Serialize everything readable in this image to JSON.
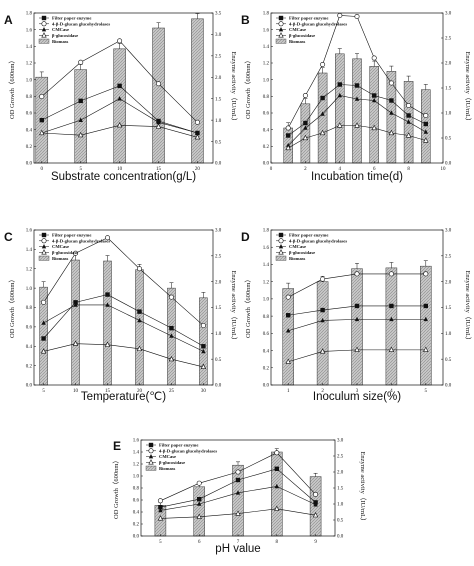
{
  "figure_colors": {
    "bar_fill": "#c8c8c8",
    "hatch": "#8a8a8a",
    "line": "#111111"
  },
  "chart_data": [
    {
      "panel": "A",
      "type": "bar",
      "categories": [
        0,
        5,
        10,
        15,
        20
      ],
      "x_ticks": [
        "0",
        "5",
        "10",
        "15",
        "20"
      ],
      "xlabel": "Substrate concentration(g/L)",
      "ylabel": "OD Growth（600nm）",
      "y2label": "Enzyme activity（IU/mL）",
      "ylim": [
        0,
        1.8
      ],
      "y_ticks": [
        "0.0",
        "0.2",
        "0.4",
        "0.6",
        "0.8",
        "1.0",
        "1.2",
        "1.4",
        "1.6",
        "1.8"
      ],
      "y2lim": [
        0,
        3.5
      ],
      "y2_ticks": [
        "0.0",
        "0.5",
        "1.0",
        "1.5",
        "2.0",
        "2.5",
        "3.0",
        "3.5"
      ],
      "legend_placement": "top-left",
      "series": [
        {
          "name": "Biomass",
          "kind": "bar",
          "values": [
            1.03,
            1.12,
            1.37,
            1.62,
            1.73
          ]
        },
        {
          "name": "Filter paper enzyme",
          "kind": "line",
          "marker": "square-filled",
          "values": [
            1.0,
            1.45,
            1.8,
            0.98,
            0.7
          ]
        },
        {
          "name": "4-β-D-glucan glucohydrolases",
          "kind": "line",
          "marker": "circle-open",
          "values": [
            1.55,
            2.35,
            2.85,
            1.85,
            0.95
          ]
        },
        {
          "name": "CMCase",
          "kind": "line",
          "marker": "triangle-filled",
          "values": [
            0.7,
            1.0,
            1.5,
            0.95,
            0.7
          ]
        },
        {
          "name": "β-glucosidase",
          "kind": "line",
          "marker": "triangle-open",
          "values": [
            0.7,
            0.65,
            0.88,
            0.85,
            0.6
          ]
        }
      ]
    },
    {
      "panel": "B",
      "type": "bar",
      "categories": [
        1,
        2,
        3,
        4,
        5,
        6,
        7,
        8,
        9
      ],
      "x_ticks": [
        "0",
        "2",
        "4",
        "6",
        "8",
        "10"
      ],
      "xlabel": "Incubation time(d)",
      "ylabel": "OD Growth（600nm）",
      "y2label": "Enzyme activity（IU/mL）",
      "ylim": [
        0,
        1.8
      ],
      "y_ticks": [
        "0.0",
        "0.2",
        "0.4",
        "0.6",
        "0.8",
        "1.0",
        "1.2",
        "1.4",
        "1.6",
        "1.8"
      ],
      "y2lim": [
        0,
        3.0
      ],
      "y2_ticks": [
        "0.0",
        "0.5",
        "1.0",
        "1.5",
        "2.0",
        "2.5",
        "3.0"
      ],
      "legend_placement": "top-left",
      "series": [
        {
          "name": "Biomass",
          "kind": "bar",
          "values": [
            0.42,
            0.71,
            1.08,
            1.31,
            1.25,
            1.16,
            1.1,
            0.98,
            0.88
          ]
        },
        {
          "name": "Filter paper enzyme",
          "kind": "line",
          "marker": "square-filled",
          "values": [
            0.55,
            0.8,
            1.3,
            1.57,
            1.55,
            1.35,
            1.25,
            0.95,
            0.78
          ]
        },
        {
          "name": "4-β-D-glucan glucohydrolases",
          "kind": "line",
          "marker": "circle-open",
          "values": [
            0.7,
            1.35,
            1.97,
            2.95,
            2.93,
            2.1,
            1.6,
            1.15,
            0.95
          ]
        },
        {
          "name": "CMCase",
          "kind": "line",
          "marker": "triangle-filled",
          "values": [
            0.35,
            0.7,
            0.98,
            1.35,
            1.28,
            1.25,
            1.0,
            0.82,
            0.62
          ]
        },
        {
          "name": "β-glucosidase",
          "kind": "line",
          "marker": "triangle-open",
          "values": [
            0.3,
            0.5,
            0.6,
            0.75,
            0.75,
            0.7,
            0.6,
            0.55,
            0.45
          ]
        }
      ]
    },
    {
      "panel": "C",
      "type": "bar",
      "categories": [
        5,
        10,
        15,
        20,
        25,
        30
      ],
      "x_ticks": [
        "5",
        "10",
        "15",
        "20",
        "25",
        "30"
      ],
      "xlabel": "Temperature(℃)",
      "ylabel": "OD Growth（600nm）",
      "y2label": "Enzyme activity（IU/mL）",
      "ylim": [
        0,
        1.6
      ],
      "y_ticks": [
        "0.0",
        "0.2",
        "0.4",
        "0.6",
        "0.8",
        "1.0",
        "1.2",
        "1.4",
        "1.6"
      ],
      "y2lim": [
        0,
        3.0
      ],
      "y2_ticks": [
        "0.0",
        "0.5",
        "1.0",
        "1.5",
        "2.0",
        "2.5",
        "3.0"
      ],
      "legend_placement": "top-left",
      "series": [
        {
          "name": "Biomass",
          "kind": "bar",
          "values": [
            1.01,
            1.29,
            1.28,
            1.19,
            1.0,
            0.9
          ]
        },
        {
          "name": "Filter paper enzyme",
          "kind": "line",
          "marker": "square-filled",
          "values": [
            0.9,
            1.6,
            1.75,
            1.42,
            1.1,
            0.75
          ]
        },
        {
          "name": "4-β-D-glucan glucohydrolases",
          "kind": "line",
          "marker": "circle-open",
          "values": [
            1.6,
            2.55,
            2.85,
            2.25,
            1.7,
            1.15
          ]
        },
        {
          "name": "CMCase",
          "kind": "line",
          "marker": "triangle-filled",
          "values": [
            1.2,
            1.55,
            1.55,
            1.25,
            0.95,
            0.65
          ]
        },
        {
          "name": "β-glucosidase",
          "kind": "line",
          "marker": "triangle-open",
          "values": [
            0.65,
            0.8,
            0.78,
            0.7,
            0.5,
            0.35
          ]
        }
      ]
    },
    {
      "panel": "D",
      "type": "bar",
      "categories": [
        1,
        2,
        3,
        4,
        5
      ],
      "x_ticks": [
        "1",
        "2",
        "3",
        "4",
        "5"
      ],
      "xlabel": "Inoculum size(%)",
      "ylabel": "OD Growth（600nm）",
      "y2label": "Enzyme activity（IU/mL）",
      "ylim": [
        0,
        1.8
      ],
      "y_ticks": [
        "0.0",
        "0.2",
        "0.4",
        "0.6",
        "0.8",
        "1.0",
        "1.2",
        "1.4",
        "1.6",
        "1.8"
      ],
      "y2lim": [
        0,
        3.0
      ],
      "y2_ticks": [
        "0.0",
        "0.5",
        "1.0",
        "1.5",
        "2.0",
        "2.5",
        "3.0"
      ],
      "legend_placement": "top-left",
      "series": [
        {
          "name": "Biomass",
          "kind": "bar",
          "values": [
            1.12,
            1.2,
            1.35,
            1.36,
            1.38
          ]
        },
        {
          "name": "Filter paper enzyme",
          "kind": "line",
          "marker": "square-filled",
          "values": [
            1.35,
            1.45,
            1.53,
            1.53,
            1.53
          ]
        },
        {
          "name": "4-β-D-glucan glucohydrolases",
          "kind": "line",
          "marker": "circle-open",
          "values": [
            1.7,
            2.05,
            2.15,
            2.15,
            2.15
          ]
        },
        {
          "name": "CMCase",
          "kind": "line",
          "marker": "triangle-filled",
          "values": [
            1.05,
            1.25,
            1.27,
            1.27,
            1.27
          ]
        },
        {
          "name": "β-glucosidase",
          "kind": "line",
          "marker": "triangle-open",
          "values": [
            0.45,
            0.65,
            0.68,
            0.68,
            0.68
          ]
        }
      ]
    },
    {
      "panel": "E",
      "type": "bar",
      "categories": [
        5,
        6,
        7,
        8,
        9
      ],
      "x_ticks": [
        "5",
        "6",
        "7",
        "8",
        "9"
      ],
      "xlabel": "pH value",
      "ylabel": "OD Growth（600nm）",
      "y2label": "Enzyme activity（IU/mL）",
      "ylim": [
        0,
        1.6
      ],
      "y_ticks": [
        "0.0",
        "0.2",
        "0.4",
        "0.6",
        "0.8",
        "1.0",
        "1.2",
        "1.4",
        "1.6"
      ],
      "y2lim": [
        0,
        3.0
      ],
      "y2_ticks": [
        "0.0",
        "0.5",
        "1.0",
        "1.5",
        "2.0",
        "2.5",
        "3.0"
      ],
      "legend_placement": "top-left",
      "series": [
        {
          "name": "Biomass",
          "kind": "bar",
          "values": [
            0.51,
            0.82,
            1.18,
            1.4,
            0.99
          ]
        },
        {
          "name": "Filter paper enzyme",
          "kind": "line",
          "marker": "square-filled",
          "values": [
            0.9,
            1.15,
            1.75,
            2.1,
            1.05
          ]
        },
        {
          "name": "4-β-D-glucan glucohydrolases",
          "kind": "line",
          "marker": "circle-open",
          "values": [
            1.1,
            1.65,
            2.0,
            2.6,
            1.3
          ]
        },
        {
          "name": "CMCase",
          "kind": "line",
          "marker": "triangle-filled",
          "values": [
            0.8,
            1.0,
            1.35,
            1.55,
            0.98
          ]
        },
        {
          "name": "β-glucosidase",
          "kind": "line",
          "marker": "triangle-open",
          "values": [
            0.55,
            0.6,
            0.7,
            0.85,
            0.65
          ]
        }
      ]
    }
  ]
}
